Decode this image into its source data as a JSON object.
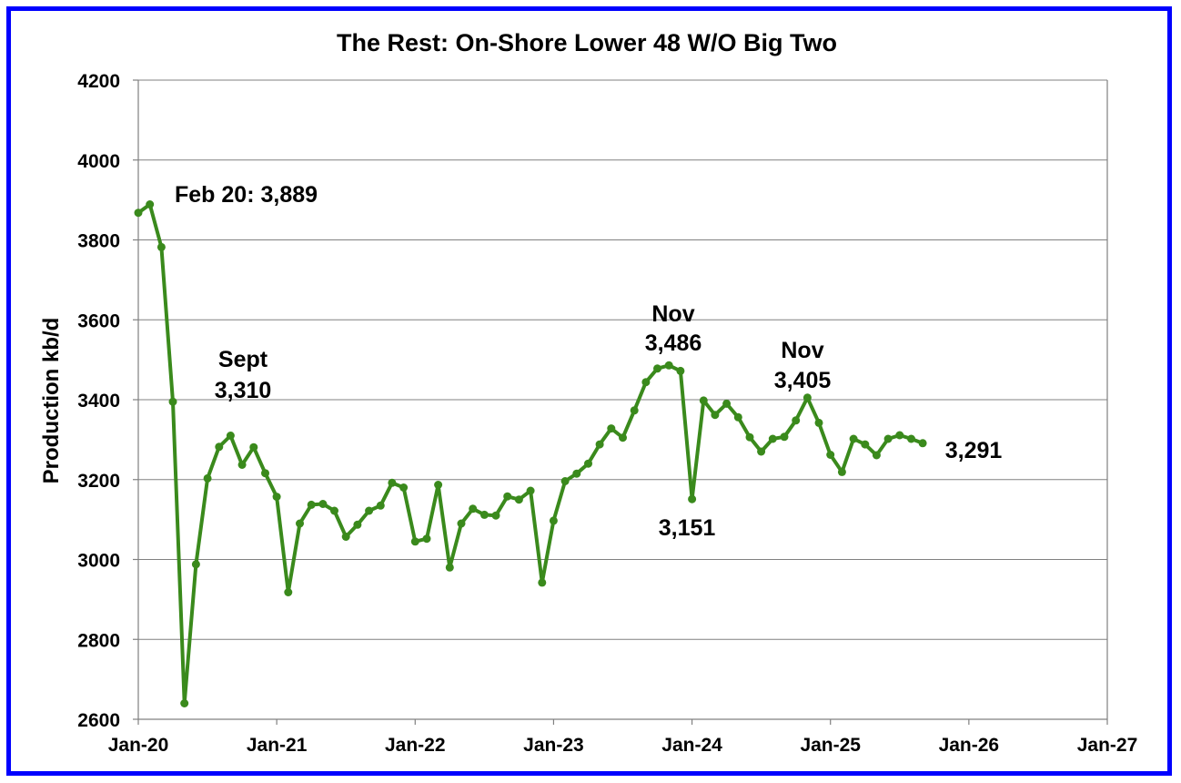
{
  "chart_data": {
    "type": "line",
    "title": "The Rest: On-Shore Lower 48 W/O Big Two",
    "xlabel": "",
    "ylabel": "Production kb/d",
    "ylim": [
      2600,
      4200
    ],
    "yticks": [
      2600,
      2800,
      3000,
      3200,
      3400,
      3600,
      3800,
      4000,
      4200
    ],
    "xticks": [
      "Jan-20",
      "Jan-21",
      "Jan-22",
      "Jan-23",
      "Jan-24",
      "Jan-25",
      "Jan-26",
      "Jan-27"
    ],
    "grid": true,
    "legend": "none",
    "colors": {
      "series": "#3a8a1c",
      "frame": "#0000ff",
      "grid": "#808080"
    },
    "series": [
      {
        "x": [
          "Jan-20",
          "Feb-20",
          "Mar-20",
          "Apr-20",
          "May-20",
          "Jun-20",
          "Jul-20",
          "Aug-20",
          "Sep-20",
          "Oct-20",
          "Nov-20",
          "Dec-20",
          "Jan-21",
          "Feb-21",
          "Mar-21",
          "Apr-21",
          "May-21",
          "Jun-21",
          "Jul-21",
          "Aug-21",
          "Sep-21",
          "Oct-21",
          "Nov-21",
          "Dec-21",
          "Jan-22",
          "Feb-22",
          "Mar-22",
          "Apr-22",
          "May-22",
          "Jun-22",
          "Jul-22",
          "Aug-22",
          "Sep-22",
          "Oct-22",
          "Nov-22",
          "Dec-22",
          "Jan-23",
          "Feb-23",
          "Mar-23",
          "Apr-23",
          "May-23",
          "Jun-23",
          "Jul-23",
          "Aug-23",
          "Sep-23",
          "Oct-23",
          "Nov-23",
          "Dec-23",
          "Jan-24",
          "Feb-24",
          "Mar-24",
          "Apr-24",
          "May-24",
          "Jun-24",
          "Jul-24",
          "Aug-24",
          "Sep-24",
          "Oct-24",
          "Nov-24",
          "Dec-24",
          "Jan-25",
          "Feb-25",
          "Mar-25",
          "Apr-25",
          "May-25",
          "Jun-25",
          "Jul-25",
          "Aug-25",
          "Sep-25"
        ],
        "values": [
          3868,
          3889,
          3782,
          3395,
          2640,
          2988,
          3203,
          3282,
          3310,
          3237,
          3281,
          3216,
          3157,
          2918,
          3090,
          3137,
          3139,
          3122,
          3057,
          3087,
          3122,
          3135,
          3192,
          3180,
          3045,
          3052,
          3187,
          2980,
          3090,
          3127,
          3112,
          3110,
          3158,
          3150,
          3172,
          2942,
          3097,
          3196,
          3215,
          3240,
          3288,
          3328,
          3305,
          3373,
          3444,
          3478,
          3486,
          3472,
          3151,
          3398,
          3362,
          3390,
          3356,
          3306,
          3270,
          3302,
          3307,
          3348,
          3405,
          3342,
          3262,
          3219,
          3302,
          3288,
          3261,
          3302,
          3311,
          3302,
          3291
        ]
      }
    ],
    "annotations": [
      {
        "lines": [
          "Feb 20: 3,889"
        ]
      },
      {
        "lines": [
          "Sept",
          "3,310"
        ]
      },
      {
        "lines": [
          "Nov",
          "3,486"
        ]
      },
      {
        "lines": [
          "3,151"
        ]
      },
      {
        "lines": [
          "Nov",
          "3,405"
        ]
      },
      {
        "lines": [
          "3,291"
        ]
      }
    ]
  }
}
